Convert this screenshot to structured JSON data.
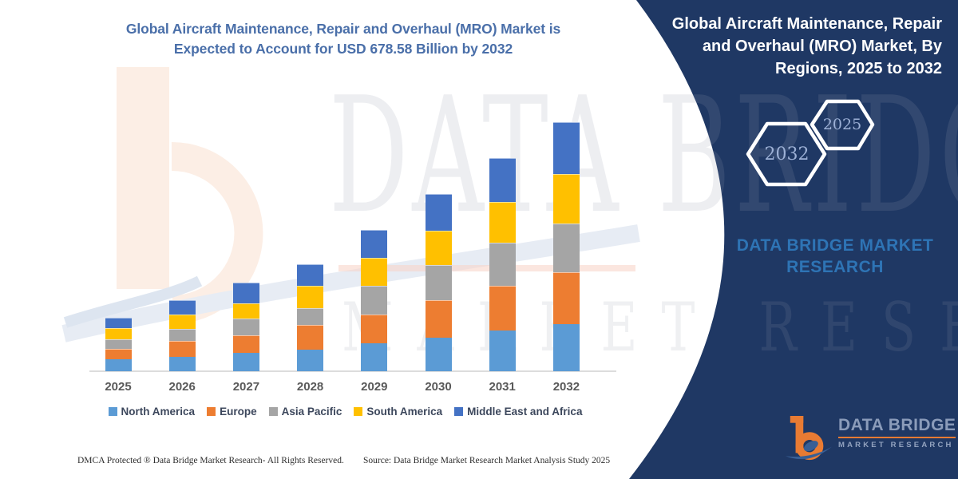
{
  "titles": {
    "left": "Global Aircraft Maintenance, Repair and Overhaul (MRO) Market is Expected to Account for USD 678.58 Billion by 2032",
    "right": "Global Aircraft Maintenance, Repair and Overhaul (MRO) Market, By Regions, 2025 to 2032"
  },
  "hexagons": {
    "large": "2032",
    "small": "2025"
  },
  "panel_wordmark": "DATA BRIDGE MARKET RESEARCH",
  "watermark": {
    "line1": "DATA BRIDGE",
    "line2": "MARKET RESEARCH"
  },
  "logo": {
    "title": "DATA BRIDGE",
    "subtitle": "MARKET RESEARCH"
  },
  "footer": {
    "dmca": "DMCA Protected ® Data Bridge Market Research-  All Rights Reserved.",
    "source": "Source: Data Bridge Market Research  Market Analysis Study 2025"
  },
  "colors": {
    "panel_navy": "#1F3864",
    "title_blue": "#4a6fa9",
    "wordmark_blue": "#2e74b5",
    "logo_orange": "#e87b33",
    "axis_gray": "#dcdcdc"
  },
  "chart_data": {
    "type": "bar",
    "stacked": true,
    "title": "Global Aircraft Maintenance, Repair and Overhaul (MRO) Market is Expected to Account for USD 678.58 Billion by 2032",
    "unit": "USD Billion",
    "categories": [
      "2025",
      "2026",
      "2027",
      "2028",
      "2029",
      "2030",
      "2031",
      "2032"
    ],
    "series": [
      {
        "name": "North America",
        "color": "#5B9BD5",
        "values": [
          32.8,
          38.7,
          50.9,
          58.3,
          76.4,
          91.3,
          110.7,
          128.9
        ]
      },
      {
        "name": "Europe",
        "color": "#ED7D31",
        "values": [
          27.7,
          43.7,
          47.4,
          69.0,
          78.6,
          102.0,
          121.4,
          142.0
        ]
      },
      {
        "name": "Asia Pacific",
        "color": "#A5A5A5",
        "values": [
          27.5,
          32.8,
          45.9,
          43.7,
          78.6,
          96.8,
          118.8,
          131.0
        ]
      },
      {
        "name": "South America",
        "color": "#FFC000",
        "values": [
          29.3,
          40.0,
          41.5,
          62.0,
          75.8,
          92.6,
          111.4,
          136.9
        ]
      },
      {
        "name": "Middle East and Africa",
        "color": "#4472C4",
        "values": [
          29.0,
          39.3,
          56.1,
          58.1,
          75.1,
          100.5,
          117.9,
          139.8
        ]
      }
    ],
    "totals": [
      146.3,
      194.5,
      241.8,
      291.1,
      384.5,
      483.2,
      580.2,
      678.58
    ],
    "xlabel": "",
    "ylabel": "",
    "ylim": [
      0,
      700
    ],
    "grid": false,
    "y_axis_visible": false,
    "legend_position": "bottom"
  }
}
